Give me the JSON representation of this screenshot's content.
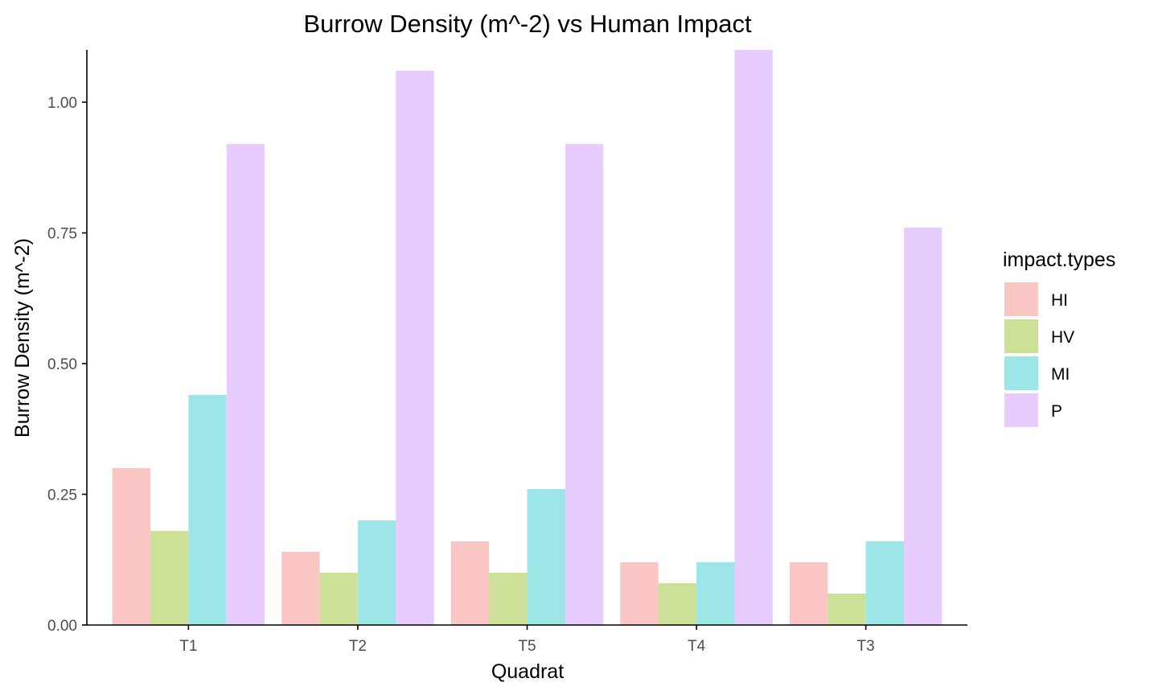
{
  "chart_data": {
    "type": "bar",
    "title": "Burrow Density (m^-2) vs Human Impact",
    "xlabel": "Quadrat",
    "ylabel": "Burrow Density (m^-2)",
    "categories": [
      "T1",
      "T2",
      "T5",
      "T4",
      "T3"
    ],
    "series": [
      {
        "name": "HI",
        "color": "#f9c6c4",
        "values": [
          0.3,
          0.14,
          0.16,
          0.12,
          0.12
        ]
      },
      {
        "name": "HV",
        "color": "#cce098",
        "values": [
          0.18,
          0.1,
          0.1,
          0.08,
          0.06
        ]
      },
      {
        "name": "MI",
        "color": "#9de6e8",
        "values": [
          0.44,
          0.2,
          0.26,
          0.12,
          0.16
        ]
      },
      {
        "name": "P",
        "color": "#e8cbff",
        "values": [
          0.92,
          1.06,
          0.92,
          1.1,
          0.76
        ]
      }
    ],
    "ylim": [
      0,
      1.1
    ],
    "yticks": [
      0,
      0.25,
      0.5,
      0.75,
      1.0
    ],
    "ytick_labels": [
      "0.00",
      "0.25",
      "0.50",
      "0.75",
      "1.00"
    ],
    "grid": false,
    "legend": {
      "title": "impact.types",
      "position": "right"
    }
  }
}
